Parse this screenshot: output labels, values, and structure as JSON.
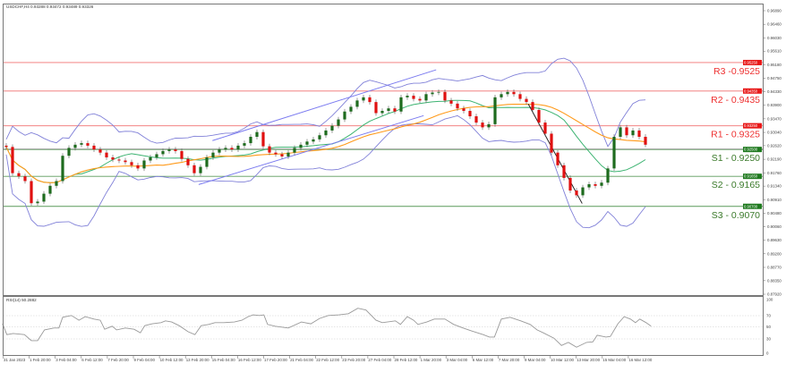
{
  "header": {
    "title": "USDCHF,H4  0.93288 0.93472 0.93489 0.93326"
  },
  "rsi_panel": {
    "label": "RSI(14) 50.2882",
    "levels": [
      "100",
      "70",
      "50",
      "30",
      "0"
    ]
  },
  "colors": {
    "resistance": "#f07070",
    "support": "#5a9a5a",
    "bull": "#1e6b1e",
    "bear": "#e01010",
    "ma_fast": "#3cb371",
    "ma_slow": "#ff9a1a",
    "bands": "#8080d8",
    "trend_up": "#7b7bf0",
    "trend_down": "#222222",
    "rsi_line": "#999999"
  },
  "chart_data": {
    "type": "candlestick",
    "symbol": "USDCHF",
    "timeframe": "H4",
    "ylim": [
      0.8792,
      0.9689
    ],
    "price_ticks": [
      "0.96890",
      "0.96460",
      "0.96030",
      "0.95610",
      "0.95180",
      "0.94750",
      "0.94330",
      "0.93900",
      "0.93470",
      "0.93040",
      "0.92620",
      "0.92190",
      "0.91760",
      "0.91340",
      "0.90910",
      "0.90480",
      "0.90060",
      "0.89630",
      "0.89200",
      "0.88770",
      "0.88350",
      "0.87920"
    ],
    "time_labels": [
      "31 Jan 2023",
      "1 Feb 20:00",
      "3 Feb 04:00",
      "6 Feb 12:00",
      "7 Feb 20:00",
      "9 Feb 04:00",
      "10 Feb 12:00",
      "13 Feb 20:00",
      "15 Feb 04:00",
      "16 Feb 12:00",
      "17 Feb 20:00",
      "21 Feb 04:00",
      "22 Feb 12:00",
      "23 Feb 20:00",
      "27 Feb 04:00",
      "28 Feb 12:00",
      "1 Mar 20:00",
      "3 Mar 04:00",
      "6 Mar 12:00",
      "7 Mar 20:00",
      "9 Mar 04:00",
      "10 Mar 12:00",
      "13 Mar 20:00",
      "15 Mar 04:00",
      "16 Mar 12:00"
    ],
    "levels": [
      {
        "name": "R3",
        "label": "R3 -0.9525",
        "value": 0.9525,
        "axis_label": "0.95250",
        "kind": "resistance"
      },
      {
        "name": "R2",
        "label": "R2 - 0.9435",
        "value": 0.9435,
        "axis_label": "0.94350",
        "kind": "resistance"
      },
      {
        "name": "R1",
        "label": "R1 - 0.9325",
        "value": 0.9325,
        "axis_label": "0.93250",
        "kind": "resistance"
      },
      {
        "name": "S1",
        "label": "S1 - 0.9250",
        "value": 0.925,
        "axis_label": "0.92500",
        "kind": "support"
      },
      {
        "name": "S2",
        "label": "S2 - 0.9165",
        "value": 0.9165,
        "axis_label": "0.91650",
        "kind": "support"
      },
      {
        "name": "S3",
        "label": "S3 - 0.9070",
        "value": 0.907,
        "axis_label": "0.90700",
        "kind": "support"
      }
    ],
    "closes": [
      0.9258,
      0.9175,
      0.9165,
      0.915,
      0.908,
      0.9085,
      0.911,
      0.9135,
      0.915,
      0.923,
      0.9255,
      0.9265,
      0.927,
      0.9262,
      0.925,
      0.924,
      0.9225,
      0.9218,
      0.9215,
      0.921,
      0.92,
      0.919,
      0.9215,
      0.9225,
      0.9235,
      0.9245,
      0.925,
      0.9245,
      0.922,
      0.92,
      0.9175,
      0.9195,
      0.9225,
      0.924,
      0.925,
      0.9255,
      0.925,
      0.9262,
      0.927,
      0.929,
      0.9305,
      0.926,
      0.924,
      0.9235,
      0.9228,
      0.924,
      0.9255,
      0.9265,
      0.9275,
      0.9282,
      0.9295,
      0.931,
      0.9325,
      0.9345,
      0.937,
      0.9385,
      0.9405,
      0.9415,
      0.94,
      0.9365,
      0.9372,
      0.938,
      0.937,
      0.9415,
      0.942,
      0.941,
      0.9405,
      0.9425,
      0.943,
      0.9432,
      0.9405,
      0.9395,
      0.938,
      0.9372,
      0.9355,
      0.9335,
      0.932,
      0.933,
      0.9415,
      0.9425,
      0.9432,
      0.9425,
      0.941,
      0.94,
      0.9375,
      0.9335,
      0.93,
      0.924,
      0.92,
      0.916,
      0.912,
      0.9105,
      0.913,
      0.914,
      0.9135,
      0.9145,
      0.919,
      0.929,
      0.932,
      0.9295,
      0.931,
      0.929,
      0.9265
    ],
    "trendlines": [
      {
        "name": "channel-upper",
        "from": [
          32.9,
          0.9278
        ],
        "to": [
          68.6,
          0.9502
        ],
        "kind": "up"
      },
      {
        "name": "channel-lower",
        "from": [
          30.7,
          0.9139
        ],
        "to": [
          66.6,
          0.9357
        ],
        "kind": "up"
      },
      {
        "name": "downtrend",
        "from": [
          83.3,
          0.9394
        ],
        "to": [
          91.9,
          0.9079
        ],
        "kind": "down"
      }
    ],
    "rsi": [
      [
        -0.6,
        55
      ],
      [
        0.1,
        37
      ],
      [
        1.1,
        39
      ],
      [
        2.9,
        37
      ],
      [
        4,
        27
      ],
      [
        5,
        27
      ],
      [
        6.1,
        45
      ],
      [
        7.6,
        48
      ],
      [
        8.4,
        48
      ],
      [
        9,
        66
      ],
      [
        10.4,
        69
      ],
      [
        11.6,
        61
      ],
      [
        12.6,
        67
      ],
      [
        14,
        63
      ],
      [
        15,
        61
      ],
      [
        15.7,
        46
      ],
      [
        16.9,
        51
      ],
      [
        17.6,
        45
      ],
      [
        19,
        48
      ],
      [
        20.4,
        46
      ],
      [
        21.4,
        40
      ],
      [
        22.1,
        52
      ],
      [
        23.3,
        55
      ],
      [
        24.7,
        57
      ],
      [
        25.4,
        60
      ],
      [
        26.4,
        58
      ],
      [
        27.6,
        52
      ],
      [
        29,
        42
      ],
      [
        30.1,
        37
      ],
      [
        31.1,
        52
      ],
      [
        32.3,
        54
      ],
      [
        33.3,
        57
      ],
      [
        34.7,
        57
      ],
      [
        36.4,
        58
      ],
      [
        37.6,
        61
      ],
      [
        38.6,
        67
      ],
      [
        39.4,
        70
      ],
      [
        40.4,
        69
      ],
      [
        41.1,
        70
      ],
      [
        41.7,
        54
      ],
      [
        42.9,
        51
      ],
      [
        45,
        48
      ],
      [
        47.1,
        58
      ],
      [
        48.6,
        55
      ],
      [
        50,
        64
      ],
      [
        51.4,
        69
      ],
      [
        53.1,
        70
      ],
      [
        54.6,
        72
      ],
      [
        56.1,
        81
      ],
      [
        57.4,
        78
      ],
      [
        59,
        61
      ],
      [
        60,
        57
      ],
      [
        62.1,
        60
      ],
      [
        62.9,
        54
      ],
      [
        64,
        67
      ],
      [
        65,
        61
      ],
      [
        65.7,
        54
      ],
      [
        67.1,
        58
      ],
      [
        68.3,
        63
      ],
      [
        70,
        63
      ],
      [
        71.4,
        54
      ],
      [
        72.9,
        48
      ],
      [
        74.3,
        43
      ],
      [
        76.1,
        37
      ],
      [
        77.1,
        33
      ],
      [
        77.9,
        33
      ],
      [
        79,
        63
      ],
      [
        80.4,
        66
      ],
      [
        82.1,
        60
      ],
      [
        83.6,
        54
      ],
      [
        84.7,
        45
      ],
      [
        85.7,
        40
      ],
      [
        87.4,
        31
      ],
      [
        88.6,
        19
      ],
      [
        89.7,
        24
      ],
      [
        91,
        16
      ],
      [
        92.6,
        24
      ],
      [
        93.6,
        25
      ],
      [
        94.3,
        36
      ],
      [
        95.7,
        33
      ],
      [
        96.4,
        34
      ],
      [
        97.6,
        55
      ],
      [
        98.6,
        67
      ],
      [
        99.6,
        63
      ],
      [
        100.4,
        57
      ],
      [
        101.1,
        63
      ],
      [
        102.1,
        57
      ],
      [
        102.9,
        51
      ]
    ]
  }
}
